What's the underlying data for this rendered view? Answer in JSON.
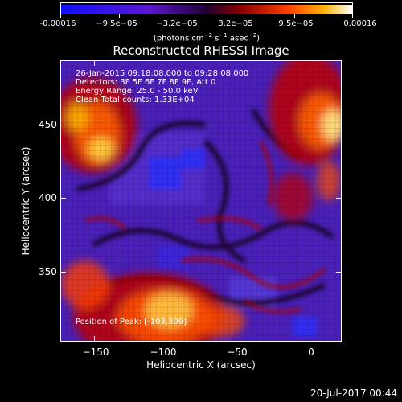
{
  "colorbar": {
    "tick_labels": [
      "-0.00016",
      "−9.5e−05",
      "−3.2e−05",
      "3.2e−05",
      "9.5e−05",
      "0.00016"
    ],
    "units_prefix": "(photons cm",
    "units_sup1": "−2",
    "units_mid1": " s",
    "units_sup2": "−1",
    "units_mid2": " asec",
    "units_sup3": "−2",
    "units_suffix": ")",
    "colors": [
      "#1010ff",
      "#5a18d0",
      "#200030",
      "#8a0000",
      "#ff4000",
      "#ffb000",
      "#ffffff"
    ]
  },
  "title": "Reconstructed RHESSI Image",
  "info": {
    "time_range": "26-Jan-2015 09:18:08.000 to 09:28:08.000",
    "detectors": "Detectors: 3F 5F 6F 7F 8F 9F, Att 0",
    "energy": "Energy Range: 25.0 - 50.0 keV",
    "clean": "Clean     Total counts: 1.33E+04",
    "peak": "Position of Peak: [-103,309]"
  },
  "axes": {
    "xlabel": "Heliocentric X (arcsec)",
    "ylabel": "Heliocentric Y (arcsec)",
    "x_ticks": [
      "−150",
      "−100",
      "−50",
      "0"
    ],
    "y_ticks": [
      "450",
      "400",
      "350"
    ],
    "xlim": [
      -170,
      20
    ],
    "ylim": [
      295,
      485
    ]
  },
  "timestamp": "20-Jul-2017 00:44"
}
